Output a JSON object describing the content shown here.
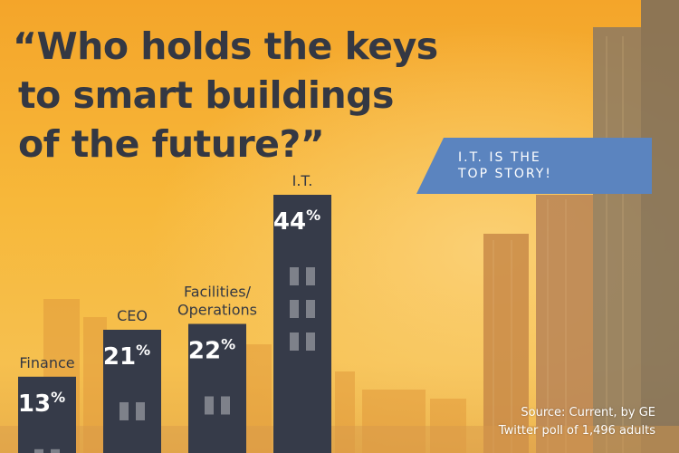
{
  "title_lines": [
    "“Who holds the keys",
    "to smart buildings",
    "of the future?”"
  ],
  "banner": {
    "text": "I.T. IS THE\nTOP STORY!"
  },
  "source": {
    "text": "Source: Current, by GE\nTwitter poll of 1,496 adults"
  },
  "colors": {
    "bar": "#363b49",
    "window": "#7e818a",
    "text_dark": "#343843",
    "banner": "#5b84bf"
  },
  "chart_data": {
    "type": "bar",
    "categories": [
      "Finance",
      "CEO",
      "Facilities/\nOperations",
      "I.T."
    ],
    "values": [
      13,
      21,
      22,
      44
    ],
    "value_labels": [
      "13%",
      "21%",
      "22%",
      "44%"
    ],
    "ylim": [
      0,
      44
    ]
  }
}
